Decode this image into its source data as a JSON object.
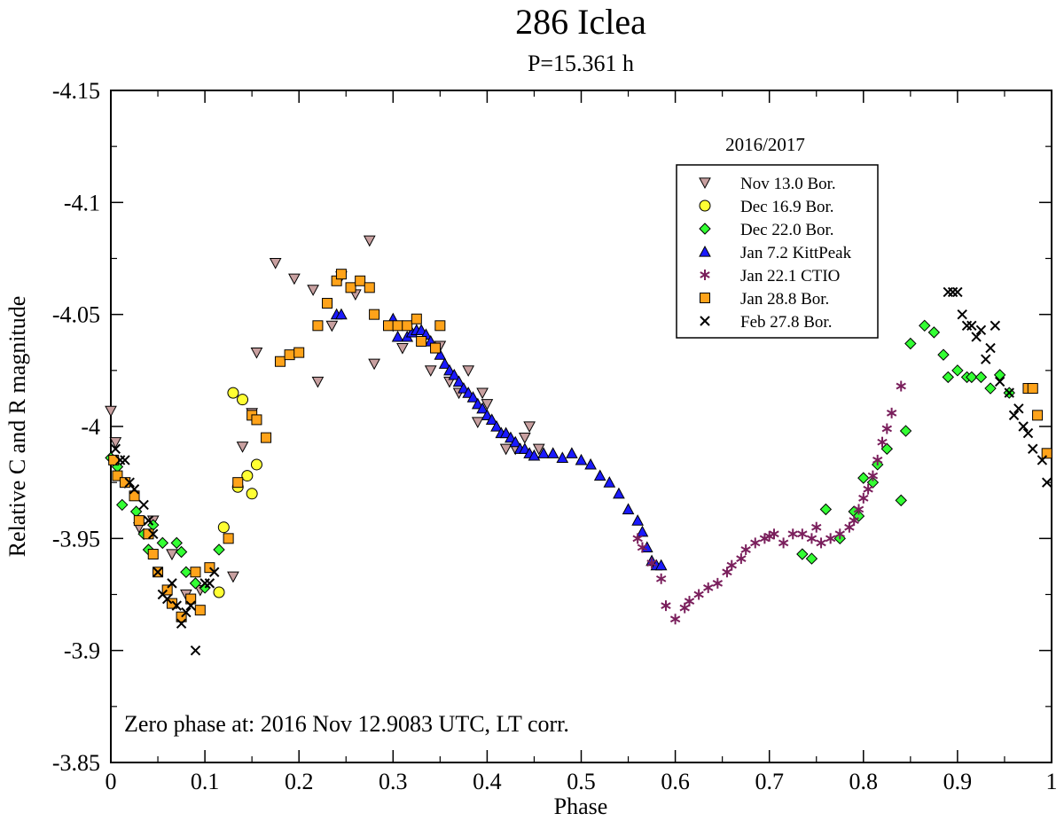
{
  "chart_data": {
    "type": "scatter",
    "title": "286 Iclea",
    "subtitle": "P=15.361 h",
    "xlabel": "Phase",
    "ylabel": "Relative C and R magnitude",
    "xlim": [
      0,
      1
    ],
    "ylim": [
      -4.15,
      -3.85
    ],
    "y_inverted": true,
    "grid": false,
    "x_ticks": [
      {
        "value": 0,
        "label": "0"
      },
      {
        "value": 0.1,
        "label": "0.1"
      },
      {
        "value": 0.2,
        "label": "0.2"
      },
      {
        "value": 0.3,
        "label": "0.3"
      },
      {
        "value": 0.4,
        "label": "0.4"
      },
      {
        "value": 0.5,
        "label": "0.5"
      },
      {
        "value": 0.6,
        "label": "0.6"
      },
      {
        "value": 0.7,
        "label": "0.7"
      },
      {
        "value": 0.8,
        "label": "0.8"
      },
      {
        "value": 0.9,
        "label": "0.9"
      },
      {
        "value": 1,
        "label": "1"
      }
    ],
    "y_ticks": [
      {
        "value": -4.15,
        "label": "-4.15"
      },
      {
        "value": -4.1,
        "label": "-4.1"
      },
      {
        "value": -4.05,
        "label": "-4.05"
      },
      {
        "value": -4.0,
        "label": "-4"
      },
      {
        "value": -3.95,
        "label": "-3.95"
      },
      {
        "value": -3.9,
        "label": "-3.9"
      },
      {
        "value": -3.85,
        "label": "-3.85"
      }
    ],
    "legend_title": "2016/2017",
    "legend_position": "top-right",
    "annotation": "Zero phase at: 2016 Nov 12.9083 UTC, LT corr.",
    "series": [
      {
        "name": "Nov 13.0 Bor.",
        "marker": "triangle-down",
        "color": "#c8a0a0",
        "points": [
          [
            0,
            -4.007
          ],
          [
            0.005,
            -3.993
          ],
          [
            0.015,
            -3.975
          ],
          [
            0.03,
            -3.955
          ],
          [
            0.045,
            -3.958
          ],
          [
            0.065,
            -3.943
          ],
          [
            0.08,
            -3.925
          ],
          [
            0.095,
            -3.927
          ],
          [
            0.13,
            -3.933
          ],
          [
            0.14,
            -3.991
          ],
          [
            0.15,
            -4.006
          ],
          [
            0.155,
            -4.033
          ],
          [
            0.175,
            -4.073
          ],
          [
            0.195,
            -4.066
          ],
          [
            0.215,
            -4.061
          ],
          [
            0.22,
            -4.02
          ],
          [
            0.235,
            -4.045
          ],
          [
            0.245,
            -4.067
          ],
          [
            0.26,
            -4.059
          ],
          [
            0.275,
            -4.083
          ],
          [
            0.28,
            -4.028
          ],
          [
            0.3,
            -4.045
          ],
          [
            0.31,
            -4.035
          ],
          [
            0.34,
            -4.025
          ],
          [
            0.35,
            -4.036
          ],
          [
            0.36,
            -4.02
          ],
          [
            0.37,
            -4.015
          ],
          [
            0.38,
            -4.025
          ],
          [
            0.39,
            -4.002
          ],
          [
            0.395,
            -4.015
          ],
          [
            0.4,
            -4.01
          ],
          [
            0.42,
            -3.99
          ],
          [
            0.43,
            -3.99
          ],
          [
            0.44,
            -3.995
          ],
          [
            0.445,
            -4.0
          ],
          [
            0.455,
            -3.99
          ]
        ]
      },
      {
        "name": "Dec 16.9 Bor.",
        "marker": "circle",
        "color": "#ffff33",
        "points": [
          [
            0.115,
            -3.926
          ],
          [
            0.12,
            -3.955
          ],
          [
            0.13,
            -4.015
          ],
          [
            0.135,
            -3.973
          ],
          [
            0.14,
            -4.012
          ],
          [
            0.145,
            -3.978
          ],
          [
            0.15,
            -3.97
          ],
          [
            0.155,
            -3.983
          ]
        ]
      },
      {
        "name": "Dec 22.0 Bor.",
        "marker": "diamond",
        "color": "#33ff33",
        "points": [
          [
            0,
            -3.986
          ],
          [
            0.007,
            -3.982
          ],
          [
            0.012,
            -3.965
          ],
          [
            0.027,
            -3.962
          ],
          [
            0.035,
            -3.952
          ],
          [
            0.04,
            -3.945
          ],
          [
            0.045,
            -3.956
          ],
          [
            0.055,
            -3.948
          ],
          [
            0.07,
            -3.948
          ],
          [
            0.075,
            -3.944
          ],
          [
            0.08,
            -3.935
          ],
          [
            0.09,
            -3.93
          ],
          [
            0.1,
            -3.928
          ],
          [
            0.115,
            -3.945
          ],
          [
            0.735,
            -3.943
          ],
          [
            0.745,
            -3.941
          ],
          [
            0.76,
            -3.963
          ],
          [
            0.775,
            -3.95
          ],
          [
            0.79,
            -3.962
          ],
          [
            0.795,
            -3.96
          ],
          [
            0.8,
            -3.977
          ],
          [
            0.81,
            -3.975
          ],
          [
            0.815,
            -3.983
          ],
          [
            0.825,
            -3.99
          ],
          [
            0.84,
            -3.967
          ],
          [
            0.845,
            -3.998
          ],
          [
            0.85,
            -4.037
          ],
          [
            0.865,
            -4.045
          ],
          [
            0.875,
            -4.042
          ],
          [
            0.885,
            -4.032
          ],
          [
            0.89,
            -4.022
          ],
          [
            0.9,
            -4.025
          ],
          [
            0.91,
            -4.022
          ],
          [
            0.915,
            -4.022
          ],
          [
            0.925,
            -4.022
          ],
          [
            0.935,
            -4.017
          ],
          [
            0.945,
            -4.023
          ],
          [
            0.955,
            -4.015
          ]
        ]
      },
      {
        "name": "Jan 7.2 KittPeak",
        "marker": "triangle-up",
        "color": "#1a1aff",
        "points": [
          [
            0.24,
            -4.05
          ],
          [
            0.245,
            -4.05
          ],
          [
            0.3,
            -4.048
          ],
          [
            0.305,
            -4.04
          ],
          [
            0.315,
            -4.04
          ],
          [
            0.32,
            -4.042
          ],
          [
            0.325,
            -4.043
          ],
          [
            0.33,
            -4.043
          ],
          [
            0.335,
            -4.041
          ],
          [
            0.34,
            -4.038
          ],
          [
            0.35,
            -4.032
          ],
          [
            0.355,
            -4.028
          ],
          [
            0.36,
            -4.025
          ],
          [
            0.365,
            -4.023
          ],
          [
            0.37,
            -4.02
          ],
          [
            0.375,
            -4.017
          ],
          [
            0.38,
            -4.015
          ],
          [
            0.385,
            -4.013
          ],
          [
            0.39,
            -4.01
          ],
          [
            0.395,
            -4.008
          ],
          [
            0.4,
            -4.005
          ],
          [
            0.405,
            -4.003
          ],
          [
            0.41,
            -4.0
          ],
          [
            0.415,
            -3.997
          ],
          [
            0.42,
            -3.997
          ],
          [
            0.425,
            -3.995
          ],
          [
            0.43,
            -3.993
          ],
          [
            0.435,
            -3.99
          ],
          [
            0.44,
            -3.99
          ],
          [
            0.445,
            -3.988
          ],
          [
            0.45,
            -3.987
          ],
          [
            0.46,
            -3.988
          ],
          [
            0.47,
            -3.988
          ],
          [
            0.48,
            -3.986
          ],
          [
            0.49,
            -3.988
          ],
          [
            0.5,
            -3.985
          ],
          [
            0.51,
            -3.983
          ],
          [
            0.52,
            -3.978
          ],
          [
            0.53,
            -3.975
          ],
          [
            0.54,
            -3.97
          ],
          [
            0.55,
            -3.963
          ],
          [
            0.56,
            -3.958
          ],
          [
            0.565,
            -3.953
          ],
          [
            0.57,
            -3.946
          ],
          [
            0.575,
            -3.94
          ],
          [
            0.58,
            -3.938
          ],
          [
            0.585,
            -3.938
          ]
        ]
      },
      {
        "name": "Jan 22.1 CTIO",
        "marker": "star",
        "color": "#7a1f5c",
        "points": [
          [
            0.56,
            -3.95
          ],
          [
            0.565,
            -3.946
          ],
          [
            0.575,
            -3.939
          ],
          [
            0.585,
            -3.932
          ],
          [
            0.59,
            -3.92
          ],
          [
            0.6,
            -3.914
          ],
          [
            0.61,
            -3.919
          ],
          [
            0.615,
            -3.922
          ],
          [
            0.625,
            -3.925
          ],
          [
            0.635,
            -3.928
          ],
          [
            0.645,
            -3.93
          ],
          [
            0.655,
            -3.935
          ],
          [
            0.66,
            -3.938
          ],
          [
            0.67,
            -3.941
          ],
          [
            0.675,
            -3.945
          ],
          [
            0.685,
            -3.948
          ],
          [
            0.695,
            -3.95
          ],
          [
            0.7,
            -3.951
          ],
          [
            0.705,
            -3.952
          ],
          [
            0.715,
            -3.948
          ],
          [
            0.725,
            -3.952
          ],
          [
            0.735,
            -3.952
          ],
          [
            0.745,
            -3.95
          ],
          [
            0.75,
            -3.955
          ],
          [
            0.755,
            -3.948
          ],
          [
            0.765,
            -3.95
          ],
          [
            0.775,
            -3.952
          ],
          [
            0.785,
            -3.955
          ],
          [
            0.79,
            -3.958
          ],
          [
            0.795,
            -3.963
          ],
          [
            0.8,
            -3.968
          ],
          [
            0.805,
            -3.972
          ],
          [
            0.81,
            -3.978
          ],
          [
            0.815,
            -3.985
          ],
          [
            0.82,
            -3.993
          ],
          [
            0.825,
            -3.999
          ],
          [
            0.83,
            -4.006
          ],
          [
            0.84,
            -4.018
          ]
        ]
      },
      {
        "name": "Jan 28.8 Bor.",
        "marker": "square",
        "color": "#ffa31a",
        "points": [
          [
            0.003,
            -3.985
          ],
          [
            0.007,
            -3.978
          ],
          [
            0.015,
            -3.975
          ],
          [
            0.025,
            -3.969
          ],
          [
            0.03,
            -3.958
          ],
          [
            0.04,
            -3.952
          ],
          [
            0.045,
            -3.943
          ],
          [
            0.05,
            -3.935
          ],
          [
            0.06,
            -3.927
          ],
          [
            0.065,
            -3.921
          ],
          [
            0.075,
            -3.915
          ],
          [
            0.085,
            -3.923
          ],
          [
            0.09,
            -3.935
          ],
          [
            0.095,
            -3.918
          ],
          [
            0.105,
            -3.937
          ],
          [
            0.125,
            -3.95
          ],
          [
            0.135,
            -3.975
          ],
          [
            0.15,
            -4.005
          ],
          [
            0.155,
            -4.003
          ],
          [
            0.165,
            -3.995
          ],
          [
            0.18,
            -4.029
          ],
          [
            0.19,
            -4.032
          ],
          [
            0.2,
            -4.033
          ],
          [
            0.22,
            -4.045
          ],
          [
            0.23,
            -4.055
          ],
          [
            0.24,
            -4.065
          ],
          [
            0.245,
            -4.068
          ],
          [
            0.255,
            -4.062
          ],
          [
            0.265,
            -4.065
          ],
          [
            0.275,
            -4.062
          ],
          [
            0.28,
            -4.05
          ],
          [
            0.295,
            -4.045
          ],
          [
            0.305,
            -4.045
          ],
          [
            0.315,
            -4.045
          ],
          [
            0.325,
            -4.048
          ],
          [
            0.33,
            -4.038
          ],
          [
            0.345,
            -4.035
          ],
          [
            0.35,
            -4.045
          ],
          [
            0.975,
            -4.017
          ],
          [
            0.98,
            -4.017
          ],
          [
            0.985,
            -4.005
          ],
          [
            0.995,
            -3.988
          ]
        ]
      },
      {
        "name": "Feb 27.8 Bor.",
        "marker": "x",
        "color": "#000000",
        "points": [
          [
            0.005,
            -3.99
          ],
          [
            0.01,
            -3.985
          ],
          [
            0.015,
            -3.985
          ],
          [
            0.02,
            -3.975
          ],
          [
            0.025,
            -3.972
          ],
          [
            0.035,
            -3.965
          ],
          [
            0.04,
            -3.958
          ],
          [
            0.045,
            -3.952
          ],
          [
            0.05,
            -3.935
          ],
          [
            0.055,
            -3.925
          ],
          [
            0.06,
            -3.923
          ],
          [
            0.065,
            -3.93
          ],
          [
            0.07,
            -3.92
          ],
          [
            0.075,
            -3.912
          ],
          [
            0.08,
            -3.917
          ],
          [
            0.085,
            -3.92
          ],
          [
            0.09,
            -3.9
          ],
          [
            0.1,
            -3.93
          ],
          [
            0.105,
            -3.93
          ],
          [
            0.11,
            -3.935
          ],
          [
            0.89,
            -4.06
          ],
          [
            0.895,
            -4.06
          ],
          [
            0.9,
            -4.06
          ],
          [
            0.905,
            -4.05
          ],
          [
            0.91,
            -4.045
          ],
          [
            0.915,
            -4.045
          ],
          [
            0.92,
            -4.04
          ],
          [
            0.925,
            -4.043
          ],
          [
            0.93,
            -4.03
          ],
          [
            0.935,
            -4.035
          ],
          [
            0.94,
            -4.045
          ],
          [
            0.945,
            -4.02
          ],
          [
            0.955,
            -4.015
          ],
          [
            0.96,
            -4.005
          ],
          [
            0.965,
            -4.008
          ],
          [
            0.97,
            -4.0
          ],
          [
            0.975,
            -3.997
          ],
          [
            0.98,
            -3.99
          ],
          [
            0.99,
            -3.985
          ],
          [
            0.995,
            -3.975
          ]
        ]
      }
    ]
  }
}
